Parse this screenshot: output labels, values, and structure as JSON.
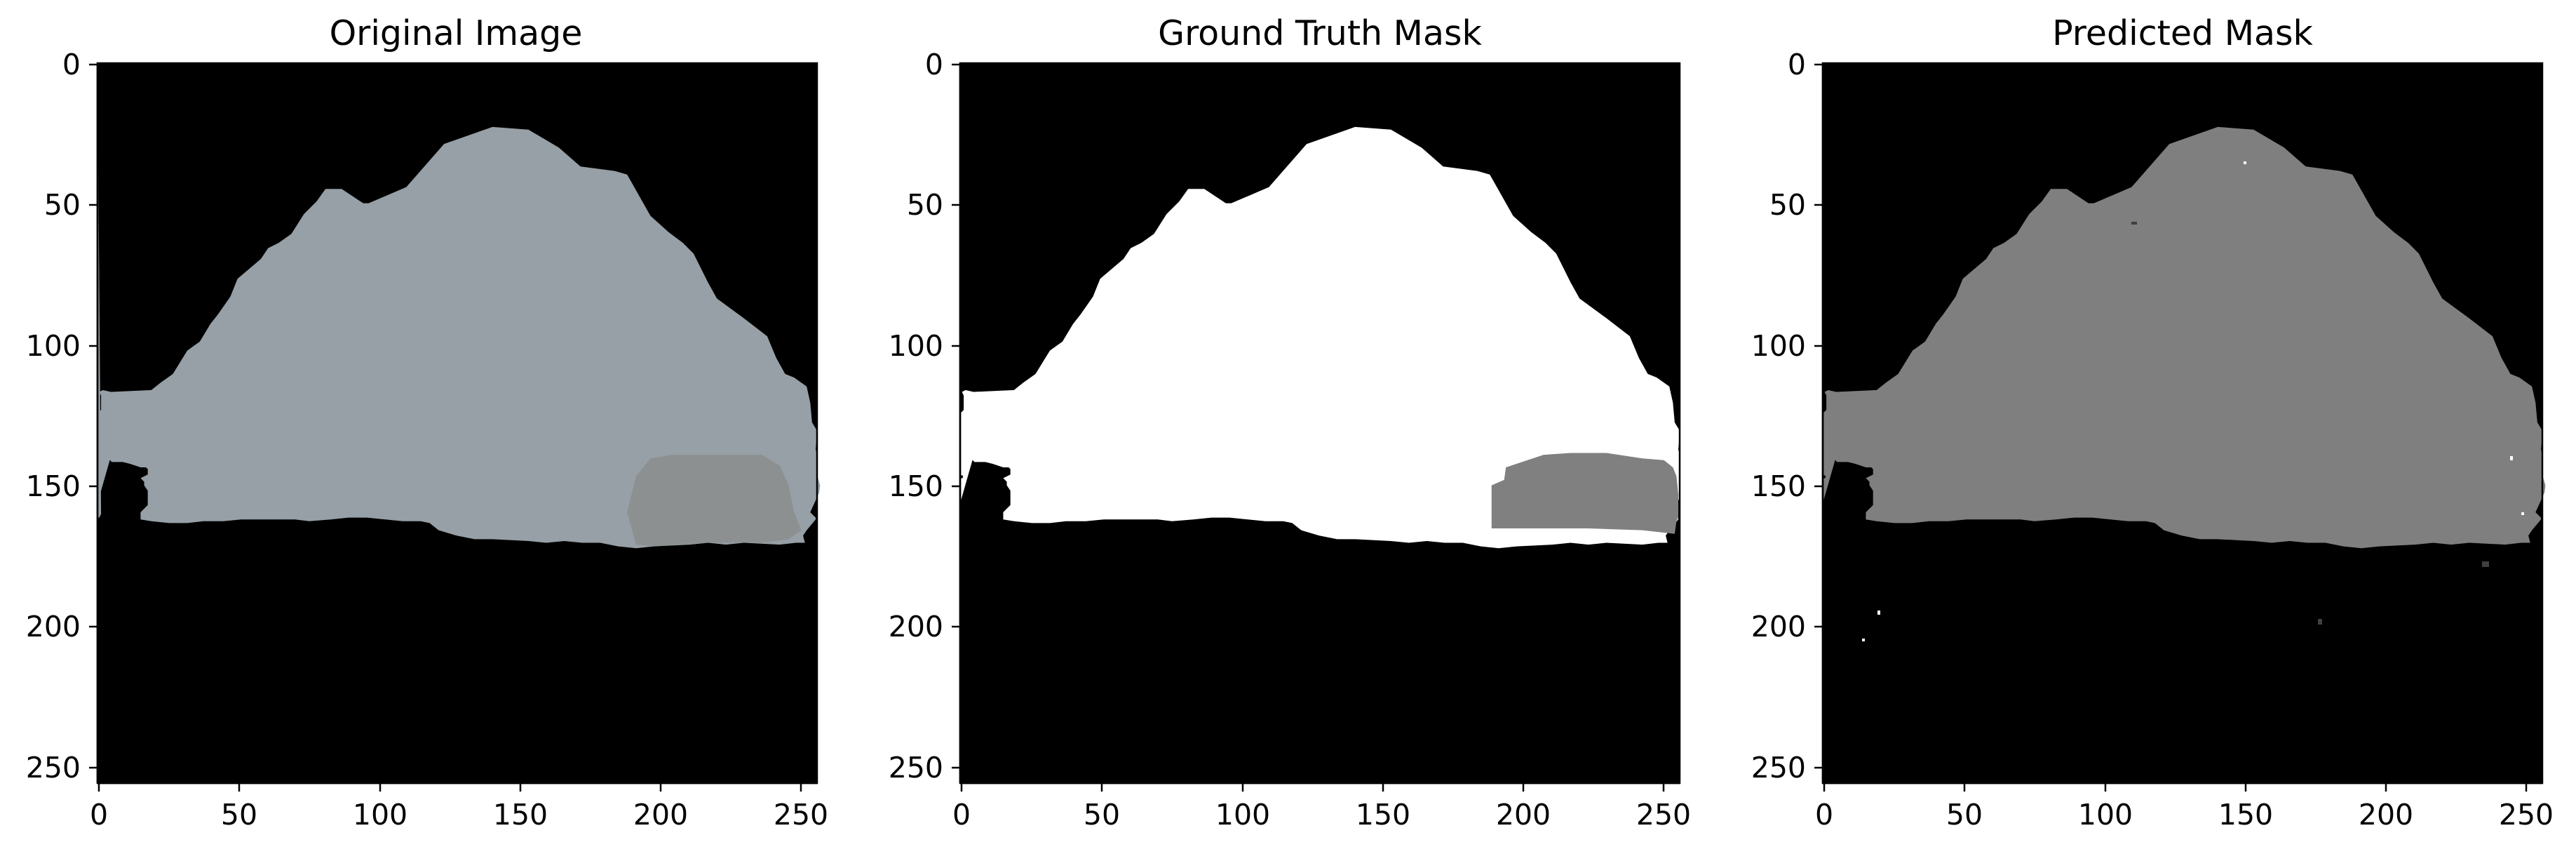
{
  "figure": {
    "panels": [
      {
        "title": "Original Image"
      },
      {
        "title": "Ground Truth Mask"
      },
      {
        "title": "Predicted Mask"
      }
    ],
    "x_ticks": [
      "0",
      "50",
      "100",
      "150",
      "200",
      "250"
    ],
    "y_ticks": [
      "0",
      "50",
      "100",
      "150",
      "200",
      "250"
    ],
    "axis_range": [
      0,
      256
    ],
    "colors": {
      "background": "#000000",
      "specimen": "#96a0a6",
      "specimen_patch": "#8d9091",
      "mask_class_1": "#ffffff",
      "mask_class_2": "#808080",
      "predicted_fill": "#7f7f7f"
    }
  }
}
